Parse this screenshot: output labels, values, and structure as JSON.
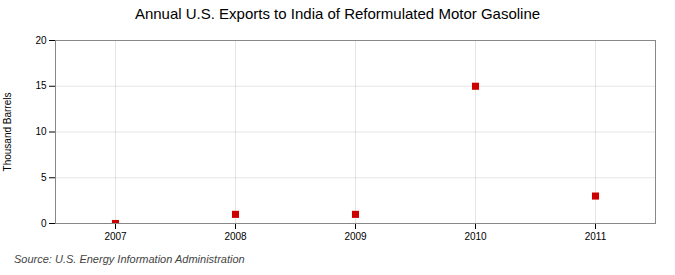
{
  "chart_data": {
    "type": "scatter",
    "title": "Annual U.S. Exports to India of Reformulated Motor Gasoline",
    "ylabel": "Thousand Barrels",
    "source": "Source: U.S. Energy Information Administration",
    "x": [
      2007,
      2008,
      2009,
      2010,
      2011
    ],
    "values": [
      0,
      1,
      1,
      15,
      3
    ],
    "color": "#cc0000",
    "marker": "square",
    "xlim": [
      2006.5,
      2011.5
    ],
    "xticks": [
      2007,
      2008,
      2009,
      2010,
      2011
    ],
    "ylim": [
      0,
      20
    ],
    "yticks": [
      0,
      5,
      10,
      15,
      20
    ],
    "grid": true
  }
}
